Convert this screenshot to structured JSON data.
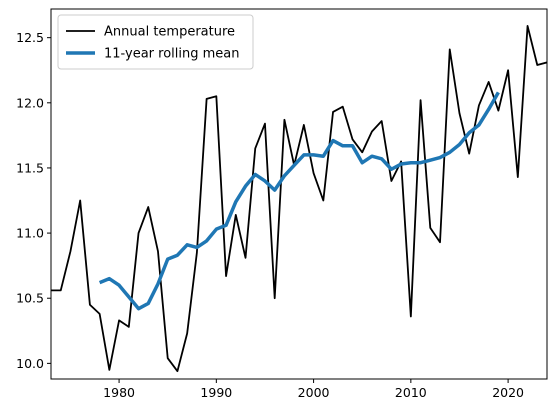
{
  "chart_data": {
    "type": "line",
    "title": "",
    "xlabel": "",
    "ylabel": "",
    "xlim": [
      1973,
      2024
    ],
    "ylim": [
      9.88,
      12.72
    ],
    "x_ticks": [
      1980,
      1990,
      2000,
      2010,
      2020
    ],
    "y_ticks": [
      10.0,
      10.5,
      11.0,
      11.5,
      12.0,
      12.5
    ],
    "grid": false,
    "legend_position": "top-left",
    "series": [
      {
        "name": "Annual temperature",
        "color": "#000000",
        "x": [
          1973,
          1974,
          1975,
          1976,
          1977,
          1978,
          1979,
          1980,
          1981,
          1982,
          1983,
          1984,
          1985,
          1986,
          1987,
          1988,
          1989,
          1990,
          1991,
          1992,
          1993,
          1994,
          1995,
          1996,
          1997,
          1998,
          1999,
          2000,
          2001,
          2002,
          2003,
          2004,
          2005,
          2006,
          2007,
          2008,
          2009,
          2010,
          2011,
          2012,
          2013,
          2014,
          2015,
          2016,
          2017,
          2018,
          2019,
          2020,
          2021,
          2022,
          2023,
          2024
        ],
        "y": [
          10.56,
          10.56,
          10.86,
          11.25,
          10.45,
          10.38,
          9.95,
          10.33,
          10.28,
          11.0,
          11.2,
          10.86,
          10.04,
          9.94,
          10.23,
          10.85,
          12.03,
          12.05,
          10.67,
          11.14,
          10.81,
          11.65,
          11.84,
          10.5,
          11.87,
          11.52,
          11.83,
          11.46,
          11.25,
          11.93,
          11.97,
          11.72,
          11.62,
          11.78,
          11.86,
          11.4,
          11.55,
          10.36,
          12.02,
          11.04,
          10.93,
          12.41,
          11.92,
          11.61,
          11.98,
          12.16,
          11.94,
          12.25,
          11.43,
          12.59,
          12.29,
          12.31
        ]
      },
      {
        "name": "11-year rolling mean",
        "color": "#1f77b4",
        "x": [
          1978,
          1979,
          1980,
          1981,
          1982,
          1983,
          1984,
          1985,
          1986,
          1987,
          1988,
          1989,
          1990,
          1991,
          1992,
          1993,
          1994,
          1995,
          1996,
          1997,
          1998,
          1999,
          2000,
          2001,
          2002,
          2003,
          2004,
          2005,
          2006,
          2007,
          2008,
          2009,
          2010,
          2011,
          2012,
          2013,
          2014,
          2015,
          2016,
          2017,
          2018,
          2019
        ],
        "y": [
          10.62,
          10.65,
          10.6,
          10.51,
          10.42,
          10.46,
          10.61,
          10.8,
          10.83,
          10.91,
          10.89,
          10.94,
          11.03,
          11.06,
          11.24,
          11.36,
          11.45,
          11.4,
          11.33,
          11.44,
          11.52,
          11.6,
          11.6,
          11.59,
          11.71,
          11.67,
          11.67,
          11.54,
          11.59,
          11.57,
          11.49,
          11.53,
          11.54,
          11.54,
          11.56,
          11.58,
          11.62,
          11.68,
          11.77,
          11.83,
          11.95,
          12.08
        ]
      }
    ]
  }
}
